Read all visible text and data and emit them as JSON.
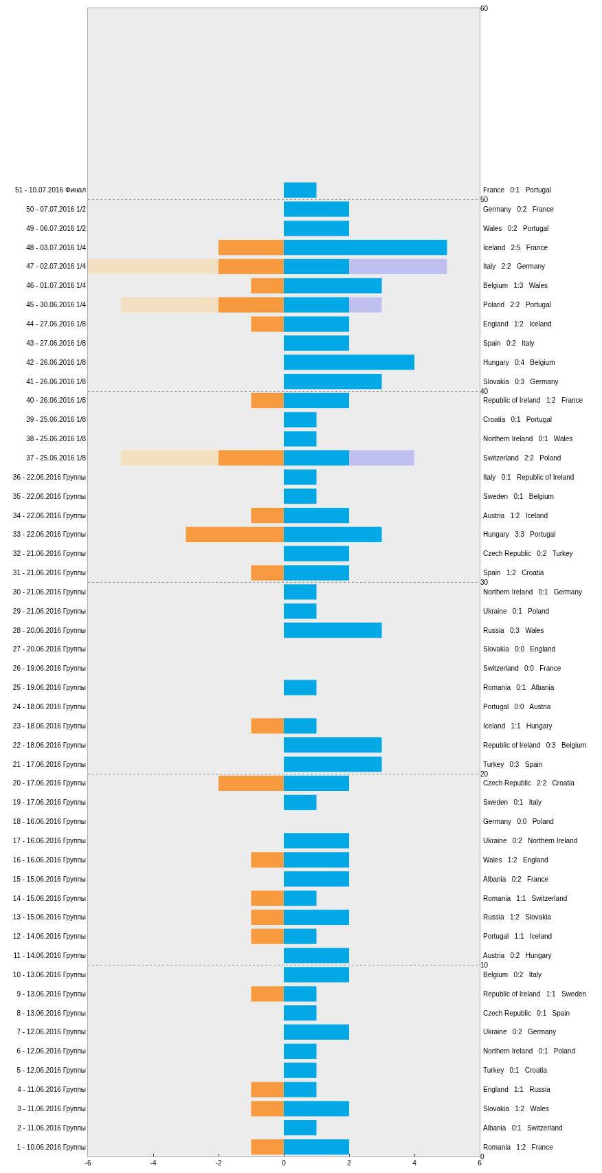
{
  "chart_data": {
    "type": "bar",
    "orientation": "horizontal",
    "grid": "y",
    "stacked": true,
    "categories": [
      "51 - 10.07.2016 Финал",
      "50 - 07.07.2016 1/2",
      "49 - 06.07.2016 1/2",
      "48 - 03.07.2016 1/4",
      "47 - 02.07.2016 1/4",
      "46 - 01.07.2016 1/4",
      "45 - 30.06.2016 1/4",
      "44 - 27.06.2016 1/8",
      "43 - 27.06.2016 1/8",
      "42 - 26.06.2016 1/8",
      "41 - 26.06.2016 1/8",
      "40 - 26.06.2016 1/8",
      "39 - 25.06.2016 1/8",
      "38 - 25.06.2016 1/8",
      "37 - 25.06.2016 1/8",
      "36 - 22.06.2016 Группы",
      "35 - 22.06.2016 Группы",
      "34 - 22.06.2016 Группы",
      "33 - 22.06.2016 Группы",
      "32 - 21.06.2016 Группы",
      "31 - 21.06.2016 Группы",
      "30 - 21.06.2016 Группы",
      "29 - 21.06.2016 Группы",
      "28 - 20.06.2016 Группы",
      "27 - 20.06.2016 Группы",
      "26 - 19.06.2016 Группы",
      "25 - 19.06.2016 Группы",
      "24 - 18.06.2016 Группы",
      "23 - 18.06.2016 Группы",
      "22 - 18.06.2016 Группы",
      "21 - 17.06.2016 Группы",
      "20 - 17.06.2016 Группы",
      "19 - 17.06.2016 Группы",
      "18 - 16.06.2016 Группы",
      "17 - 16.06.2016 Группы",
      "16 - 16.06.2016 Группы",
      "15 - 15.06.2016 Группы",
      "14 - 15.06.2016 Группы",
      "13 - 15.06.2016 Группы",
      "12 - 14.06.2016 Группы",
      "11 - 14.06.2016 Группы",
      "10 - 13.06.2016 Группы",
      "9 - 13.06.2016 Группы",
      "8 - 13.06.2016 Группы",
      "7 - 12.06.2016 Группы",
      "6 - 12.06.2016 Группы",
      "5 - 12.06.2016 Группы",
      "4 - 11.06.2016 Группы",
      "3 - 11.06.2016 Группы",
      "2 - 11.06.2016 Группы",
      "1 - 10.06.2016 Группы"
    ],
    "series": [
      {
        "color": "#f1dfc0",
        "values": [
          null,
          null,
          null,
          null,
          -4,
          null,
          -3,
          null,
          null,
          null,
          null,
          null,
          null,
          null,
          -3,
          null,
          null,
          null,
          null,
          null,
          null,
          null,
          null,
          null,
          null,
          null,
          null,
          null,
          null,
          null,
          null,
          null,
          null,
          null,
          null,
          null,
          null,
          null,
          null,
          null,
          null,
          null,
          null,
          null,
          null,
          null,
          null,
          null,
          null,
          null,
          null
        ]
      },
      {
        "color": "#c0c0f0",
        "values": [
          null,
          null,
          null,
          null,
          3,
          null,
          1,
          null,
          null,
          null,
          null,
          null,
          null,
          null,
          2,
          null,
          null,
          null,
          null,
          null,
          null,
          null,
          null,
          null,
          null,
          null,
          null,
          null,
          null,
          null,
          null,
          null,
          null,
          null,
          null,
          null,
          null,
          null,
          null,
          null,
          null,
          null,
          null,
          null,
          null,
          null,
          null,
          null,
          null,
          null,
          null
        ]
      },
      {
        "color": "#f79a3e",
        "values": [
          0,
          0,
          0,
          -2,
          -2,
          -1,
          -2,
          -1,
          0,
          0,
          0,
          -1,
          0,
          0,
          -2,
          0,
          0,
          -1,
          -3,
          0,
          -1,
          0,
          0,
          0,
          0,
          0,
          0,
          0,
          -1,
          0,
          0,
          -2,
          0,
          0,
          0,
          -1,
          0,
          -1,
          -1,
          -1,
          0,
          0,
          -1,
          0,
          0,
          0,
          0,
          -1,
          -1,
          0,
          -1
        ]
      },
      {
        "color": "#00a8e6",
        "values": [
          1,
          2,
          2,
          5,
          2,
          3,
          2,
          2,
          2,
          4,
          3,
          2,
          1,
          1,
          2,
          1,
          1,
          2,
          3,
          2,
          2,
          1,
          1,
          3,
          0,
          0,
          1,
          0,
          1,
          3,
          3,
          2,
          1,
          0,
          2,
          2,
          2,
          1,
          2,
          1,
          2,
          2,
          1,
          1,
          2,
          1,
          1,
          1,
          2,
          1,
          2
        ]
      }
    ],
    "xlim": [
      -6,
      6
    ],
    "xticks": [
      -6,
      -4,
      -2,
      0,
      2,
      4,
      6
    ],
    "y2lim": [
      0,
      60
    ],
    "y2ticks": [
      0,
      10,
      20,
      30,
      40,
      50,
      60
    ],
    "annotations": [
      "France   0:1   Portugal",
      "Germany   0:2   France",
      "Wales   0:2   Portugal",
      "Iceland   2:5   France",
      "Italy   2:2   Germany",
      "Belgium   1:3   Wales",
      "Poland   2:2   Portugal",
      "England   1:2   Iceland",
      "Spain   0:2   Italy",
      "Hungary   0:4   Belgium",
      "Slovakia   0:3   Germany",
      "Republic of Ireland   1:2   France",
      "Croatia   0:1   Portugal",
      "Northern Ireland   0:1   Wales",
      "Switzerland   2:2   Poland",
      "Italy   0:1   Republic of Ireland",
      "Sweden   0:1   Belgium",
      "Austria   1:2   Iceland",
      "Hungary   3:3   Portugal",
      "Czech Republic   0:2   Turkey",
      "Spain   1:2   Croatia",
      "Northern Ireland   0:1   Germany",
      "Ukraine   0:1   Poland",
      "Russia   0:3   Wales",
      "Slovakia   0:0   England",
      "Switzerland   0:0   France",
      "Romania   0:1   Albania",
      "Portugal   0:0   Austria",
      "Iceland   1:1   Hungary",
      "Republic of Ireland   0:3   Belgium",
      "Turkey   0:3   Spain",
      "Czech Republic   2:2   Croatia",
      "Sweden   0:1   Italy",
      "Germany   0:0   Poland",
      "Ukraine   0:2   Northern Ireland",
      "Wales   1:2   England",
      "Albania   0:2   France",
      "Romania   1:1   Switzerland",
      "Russia   1:2   Slovakia",
      "Portugal   1:1   Iceland",
      "Austria   0:2   Hungary",
      "Belgium   0:2   Italy",
      "Republic of Ireland   1:1   Sweden",
      "Czech Republic   0:1   Spain",
      "Ukraine   0:2   Germany",
      "Northern Ireland   0:1   Poland",
      "Turkey   0:1   Croatia",
      "England   1:1   Russia",
      "Slovakia   1:2   Wales",
      "Albania   0:1   Switzerland",
      "Romania   1:2   France"
    ]
  }
}
